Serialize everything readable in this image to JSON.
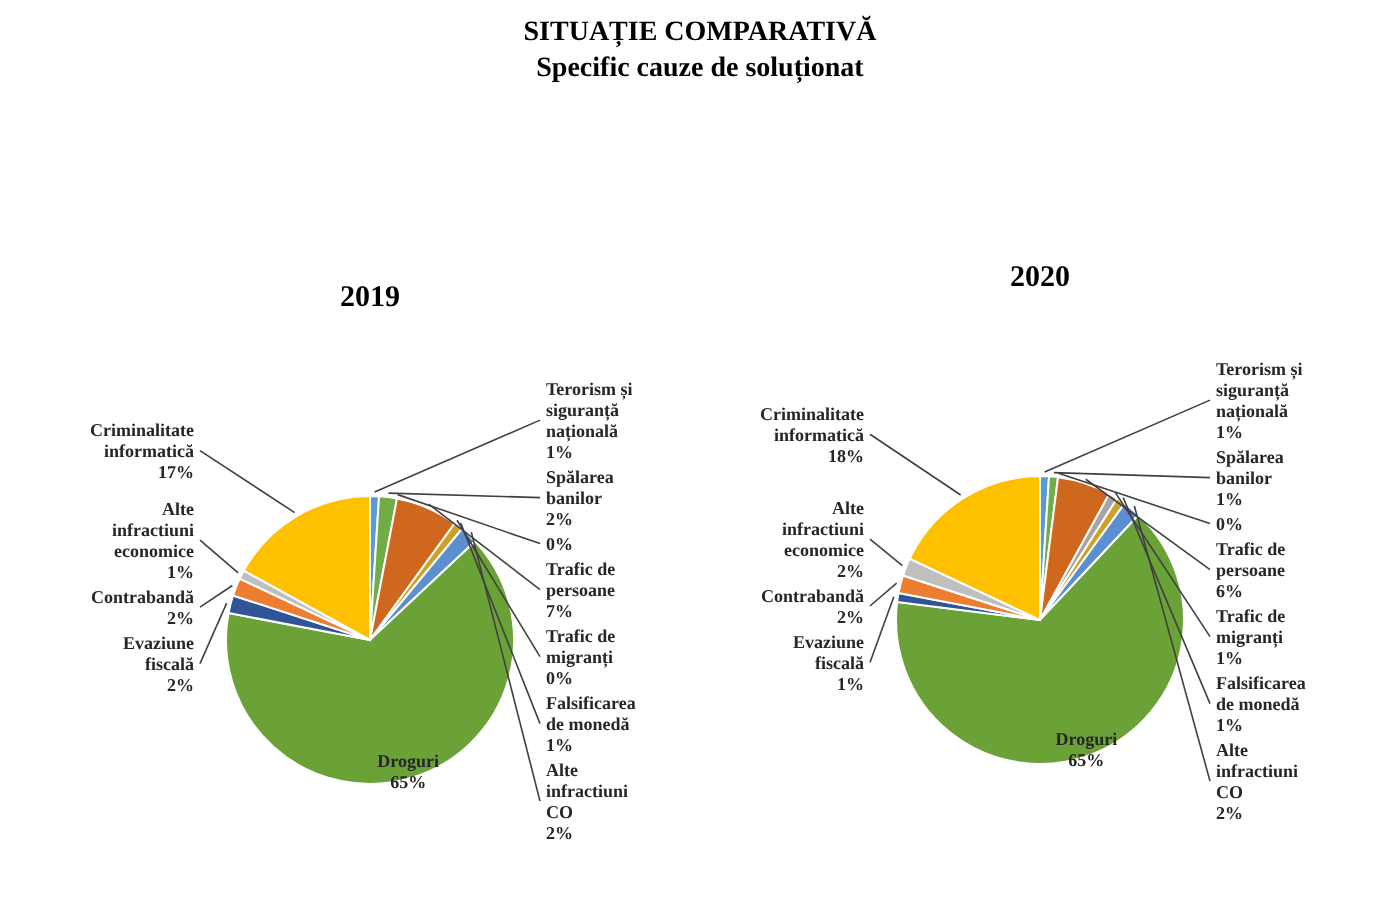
{
  "chart_data": [
    {
      "type": "pie",
      "title": "SITUAȚIE COMPARATIVĂ",
      "subtitle": "Specific cauze de soluționat",
      "annotations": [
        "2019"
      ],
      "categories": [
        "Terorism și siguranță națională",
        "Spălarea banilor",
        null,
        "Trafic de persoane",
        "Trafic de migranți",
        "Falsificarea de monedă",
        "Alte infractiuni CO",
        "Droguri",
        "Evaziune fiscală",
        "Contrabandă",
        "Alte infractiuni economice",
        "Criminalitate informatică"
      ],
      "values": [
        1,
        2,
        0,
        7,
        0,
        1,
        2,
        65,
        2,
        2,
        1,
        17
      ],
      "value_labels": [
        "1%",
        "2%",
        "0%",
        "7%",
        "0%",
        "1%",
        "2%",
        "65%",
        "2%",
        "2%",
        "1%",
        "17%"
      ],
      "colors": [
        "#5b9bd5",
        "#70ad47",
        "#9e480e",
        "#d0671f",
        "#a5a5a5",
        "#c9a227",
        "#5b8fd0",
        "#6aa237",
        "#2f5597",
        "#ed7d31",
        "#bfbfbf",
        "#ffc000"
      ]
    },
    {
      "type": "pie",
      "annotations": [
        "2020"
      ],
      "categories": [
        "Terorism și siguranță națională",
        "Spălarea banilor",
        null,
        "Trafic de persoane",
        "Trafic de migranți",
        "Falsificarea de monedă",
        "Alte infractiuni CO",
        "Droguri",
        "Evaziune fiscală",
        "Contrabandă",
        "Alte infractiuni economice",
        "Criminalitate informatică"
      ],
      "values": [
        1,
        1,
        0,
        6,
        1,
        1,
        2,
        65,
        1,
        2,
        2,
        18
      ],
      "value_labels": [
        "1%",
        "1%",
        "0%",
        "6%",
        "1%",
        "1%",
        "2%",
        "65%",
        "1%",
        "2%",
        "2%",
        "18%"
      ],
      "colors": [
        "#5b9bd5",
        "#70ad47",
        "#9e480e",
        "#d0671f",
        "#a5a5a5",
        "#c9a227",
        "#5b8fd0",
        "#6aa237",
        "#2f5597",
        "#ed7d31",
        "#bfbfbf",
        "#ffc000"
      ]
    }
  ]
}
